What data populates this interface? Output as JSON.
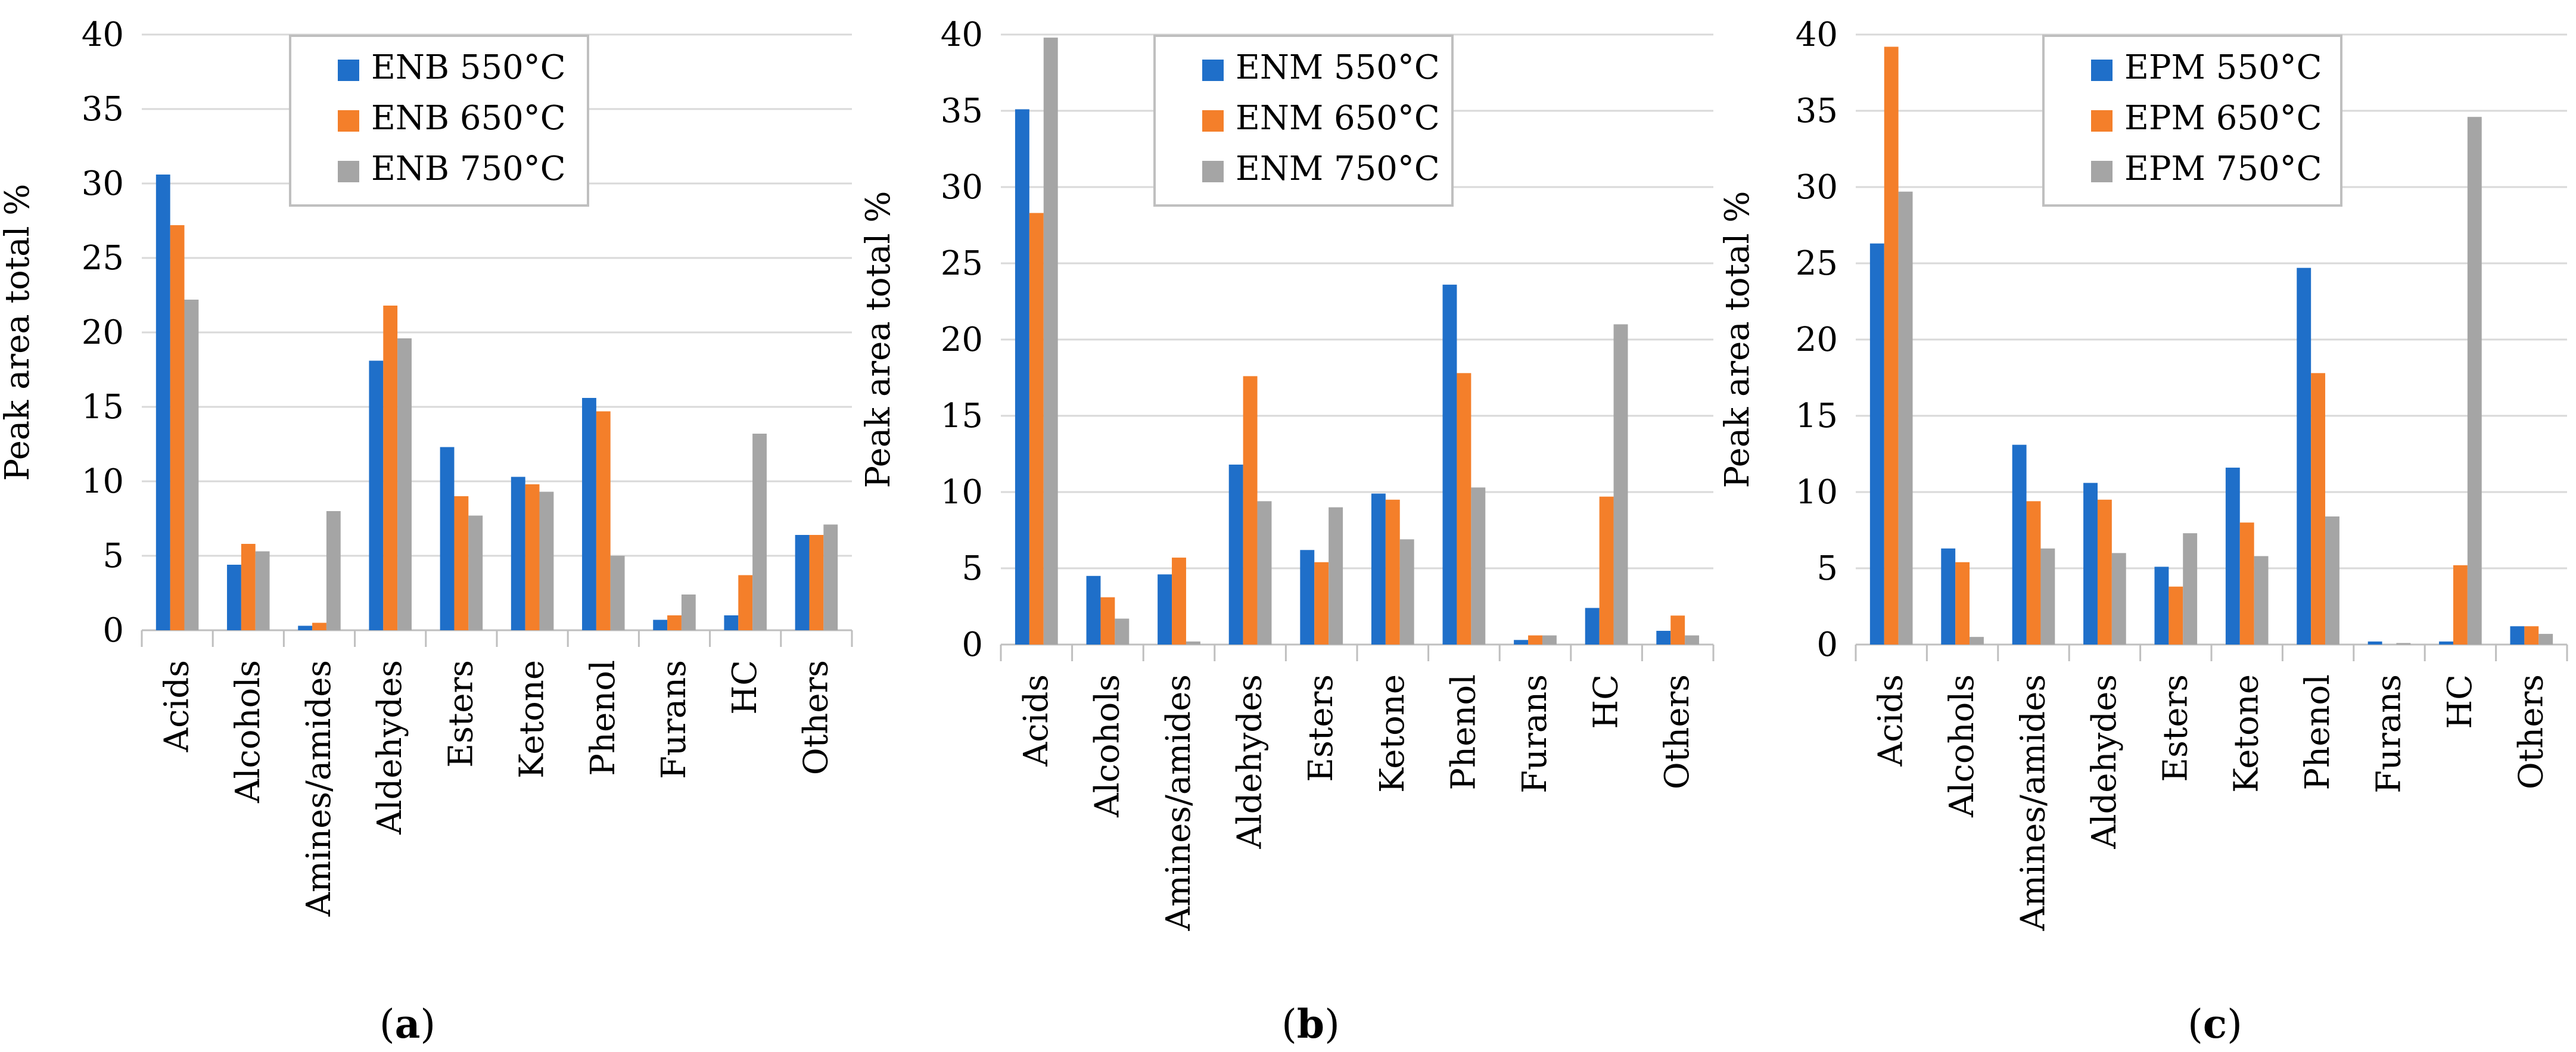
{
  "colors": {
    "s550": "#1f6fc9",
    "s650": "#f47f2a",
    "s750": "#a5a5a5",
    "grid": "#d9d9d9",
    "axis": "#bfbfbf",
    "legend_border": "#bfbfbf"
  },
  "chart_data": [
    {
      "type": "bar",
      "panel_label": "a",
      "categories": [
        "Acids",
        "Alcohols",
        "Amines/amides",
        "Aldehydes",
        "Esters",
        "Ketone",
        "Phenol",
        "Furans",
        "HC",
        "Others"
      ],
      "ylabel": "Peak area total %",
      "ylim": [
        0,
        40
      ],
      "yticks": [
        "0",
        "5",
        "10",
        "15",
        "20",
        "25",
        "30",
        "35",
        "40"
      ],
      "grid": true,
      "legend_position": "top-center",
      "series": [
        {
          "name": "ENB 550°C",
          "color_key": "s550",
          "values": [
            30.6,
            4.4,
            0.3,
            18.1,
            12.3,
            10.3,
            15.6,
            0.7,
            1.0,
            6.4
          ]
        },
        {
          "name": "ENB 650°C",
          "color_key": "s650",
          "values": [
            27.2,
            5.8,
            0.5,
            21.8,
            9.0,
            9.8,
            14.7,
            1.0,
            3.7,
            6.4
          ]
        },
        {
          "name": "ENB 750°C",
          "color_key": "s750",
          "values": [
            22.2,
            5.3,
            8.0,
            19.6,
            7.7,
            9.3,
            5.0,
            2.4,
            13.2,
            7.1
          ]
        }
      ]
    },
    {
      "type": "bar",
      "panel_label": "b",
      "categories": [
        "Acids",
        "Alcohols",
        "Amines/amides",
        "Aldehydes",
        "Esters",
        "Ketone",
        "Phenol",
        "Furans",
        "HC",
        "Others"
      ],
      "ylabel": "Peak area total %",
      "ylim": [
        0,
        40
      ],
      "yticks": [
        "0",
        "5",
        "10",
        "15",
        "20",
        "25",
        "30",
        "35",
        "40"
      ],
      "grid": true,
      "legend_position": "top-center",
      "series": [
        {
          "name": "ENM 550°C",
          "color_key": "s550",
          "values": [
            35.1,
            4.5,
            4.6,
            11.8,
            6.2,
            9.9,
            23.6,
            0.3,
            2.4,
            0.9
          ]
        },
        {
          "name": "ENM 650°C",
          "color_key": "s650",
          "values": [
            28.3,
            3.1,
            5.7,
            17.6,
            5.4,
            9.5,
            17.8,
            0.6,
            9.7,
            1.9
          ]
        },
        {
          "name": "ENM 750°C",
          "color_key": "s750",
          "values": [
            39.8,
            1.7,
            0.2,
            9.4,
            9.0,
            6.9,
            10.3,
            0.6,
            21.0,
            0.6
          ]
        }
      ]
    },
    {
      "type": "bar",
      "panel_label": "c",
      "categories": [
        "Acids",
        "Alcohols",
        "Amines/amides",
        "Aldehydes",
        "Esters",
        "Ketone",
        "Phenol",
        "Furans",
        "HC",
        "Others"
      ],
      "ylabel": "Peak area total %",
      "ylim": [
        0,
        40
      ],
      "yticks": [
        "0",
        "5",
        "10",
        "15",
        "20",
        "25",
        "30",
        "35",
        "40"
      ],
      "grid": true,
      "legend_position": "top-center",
      "series": [
        {
          "name": "EPM 550°C",
          "color_key": "s550",
          "values": [
            26.3,
            6.3,
            13.1,
            10.6,
            5.1,
            11.6,
            24.7,
            0.2,
            0.2,
            1.2
          ]
        },
        {
          "name": "EPM 650°C",
          "color_key": "s650",
          "values": [
            39.2,
            5.4,
            9.4,
            9.5,
            3.8,
            8.0,
            17.8,
            0.0,
            5.2,
            1.2
          ]
        },
        {
          "name": "EPM 750°C",
          "color_key": "s750",
          "values": [
            29.7,
            0.5,
            6.3,
            6.0,
            7.3,
            5.8,
            8.4,
            0.1,
            34.6,
            0.7
          ]
        }
      ]
    }
  ]
}
